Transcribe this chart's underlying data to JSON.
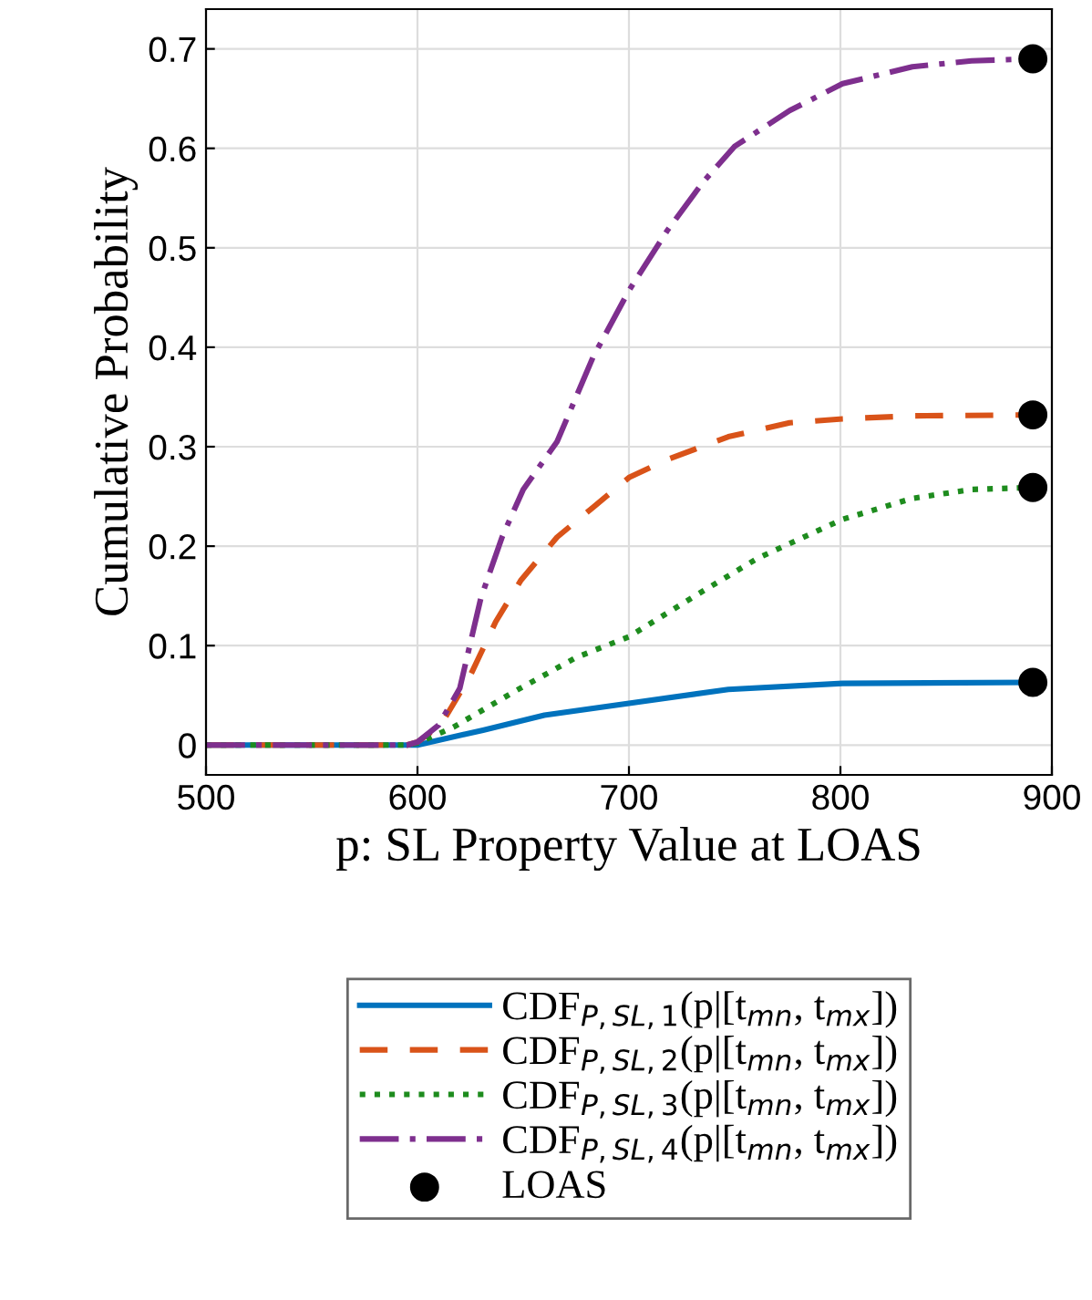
{
  "chart_data": {
    "type": "line",
    "xlabel": "p: SL Property Value at LOAS",
    "ylabel": "Cumulative Probability",
    "xlim": [
      500,
      900
    ],
    "xticks": [
      500,
      600,
      700,
      800,
      900
    ],
    "ylim": [
      -0.03,
      0.74
    ],
    "yticks": [
      0,
      0.1,
      0.2,
      0.3,
      0.4,
      0.5,
      0.6,
      0.7
    ],
    "grid": true,
    "legend": "bottom",
    "series": [
      {
        "name": "CDF$_{P,SL,1}$(p|[t$_{mn}$, t$_{mx}$])",
        "color": "#0072bd",
        "line_style": "solid",
        "x": [
          500,
          595,
          600,
          631,
          660,
          700,
          747,
          801,
          891
        ],
        "values": [
          0,
          0,
          0,
          0.015,
          0.03,
          0.042,
          0.056,
          0.062,
          0.063
        ]
      },
      {
        "name": "CDF$_{P,SL,2}$(p|[t$_{mn}$, t$_{mx}$])",
        "color": "#d95319",
        "line_style": "dashed",
        "x": [
          500,
          595,
          600,
          611,
          625,
          637,
          649,
          666,
          683,
          700,
          718,
          747,
          776,
          801,
          834,
          891
        ],
        "values": [
          0,
          0,
          0.003,
          0.02,
          0.07,
          0.124,
          0.166,
          0.209,
          0.239,
          0.269,
          0.287,
          0.31,
          0.324,
          0.328,
          0.331,
          0.332
        ]
      },
      {
        "name": "CDF$_{P,SL,3}$(p|[t$_{mn}$, t$_{mx}$])",
        "color": "#1e8c1e",
        "line_style": "dotted",
        "x": [
          500,
          595,
          600,
          617,
          646,
          675,
          700,
          732,
          761,
          801,
          834,
          862,
          891
        ],
        "values": [
          0,
          0,
          0.002,
          0.018,
          0.054,
          0.088,
          0.109,
          0.151,
          0.188,
          0.227,
          0.248,
          0.257,
          0.259
        ]
      },
      {
        "name": "CDF$_{P,SL,4}$(p|[t$_{mn}$, t$_{mx}$])",
        "color": "#7e2f8e",
        "line_style": "dashdot",
        "x": [
          500,
          595,
          600,
          610,
          620,
          630,
          640,
          650,
          666,
          683,
          700,
          718,
          735,
          750,
          776,
          801,
          834,
          862,
          891
        ],
        "values": [
          0,
          0,
          0.003,
          0.02,
          0.057,
          0.148,
          0.209,
          0.257,
          0.305,
          0.39,
          0.457,
          0.517,
          0.566,
          0.602,
          0.638,
          0.665,
          0.682,
          0.688,
          0.69
        ]
      },
      {
        "name": "LOAS",
        "type": "scatter",
        "color": "#000000",
        "marker": "circle",
        "x": [
          891,
          891,
          891,
          891
        ],
        "values": [
          0.063,
          0.332,
          0.259,
          0.69
        ]
      }
    ]
  }
}
